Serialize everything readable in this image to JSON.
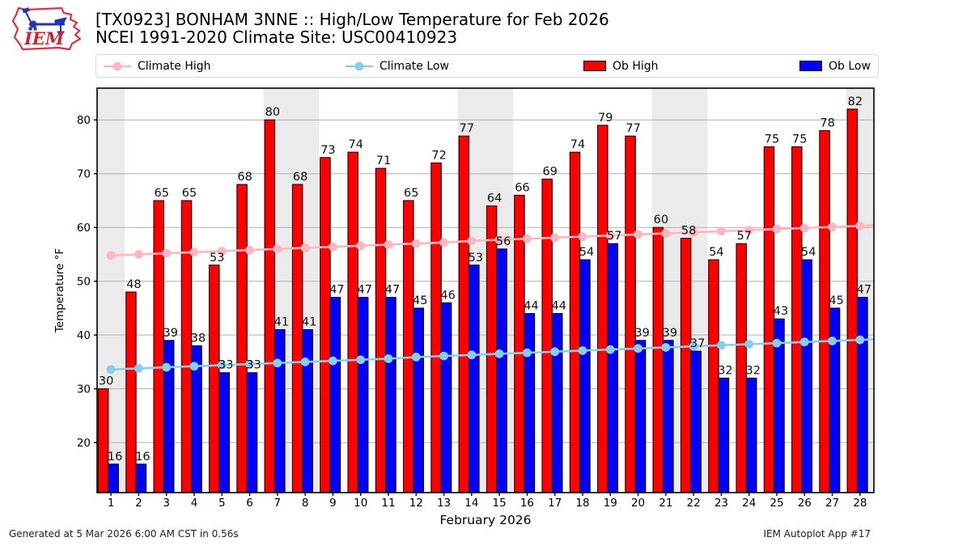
{
  "logo": {
    "text": "IEM"
  },
  "legend": {
    "items": [
      {
        "label": "Climate High",
        "swatch": "line",
        "color": "#ffb6c1"
      },
      {
        "label": "Climate Low",
        "swatch": "line",
        "color": "#87ceeb"
      },
      {
        "label": "Ob High",
        "swatch": "patch",
        "color": "#ff0000"
      },
      {
        "label": "Ob Low",
        "swatch": "patch",
        "color": "#0000ff"
      }
    ]
  },
  "footer": {
    "left": "Generated at 5 Mar 2026 6:00 AM CST in 0.56s",
    "right": "IEM Autoplot App #17"
  },
  "chart_data": {
    "type": "bar",
    "title": "[TX0923] BONHAM 3NNE :: High/Low Temperature for Feb 2026",
    "subtitle": "NCEI 1991-2020 Climate Site: USC00410923",
    "xlabel": "February 2026",
    "ylabel": "Temperature °F",
    "x": [
      1,
      2,
      3,
      4,
      5,
      6,
      7,
      8,
      9,
      10,
      11,
      12,
      13,
      14,
      15,
      16,
      17,
      18,
      19,
      20,
      21,
      22,
      23,
      24,
      25,
      26,
      27,
      28
    ],
    "yticks": [
      20,
      30,
      40,
      50,
      60,
      70,
      80
    ],
    "ylim": [
      10.7,
      85.9
    ],
    "grid": "horizontal",
    "legend_position": "top",
    "weekend_shading_day_ranges": [
      [
        1,
        2
      ],
      [
        7,
        9
      ],
      [
        14,
        16
      ],
      [
        21,
        23
      ],
      [
        28,
        29
      ]
    ],
    "colors": {
      "weekend_band": "#ebebeb",
      "gridline": "#b0b0b0",
      "bar_edge": "#000000",
      "label_text": "#111111"
    },
    "series": [
      {
        "name": "Ob High",
        "type": "bar",
        "color": "#ff0000",
        "labeled": true,
        "values": [
          30,
          48,
          65,
          65,
          53,
          68,
          80,
          68,
          73,
          74,
          71,
          65,
          72,
          77,
          64,
          66,
          69,
          74,
          79,
          77,
          60,
          58,
          54,
          57,
          75,
          75,
          78,
          82
        ]
      },
      {
        "name": "Ob Low",
        "type": "bar",
        "color": "#0000ff",
        "labeled": true,
        "values": [
          16,
          16,
          39,
          38,
          33,
          33,
          41,
          41,
          47,
          47,
          47,
          45,
          46,
          53,
          56,
          44,
          44,
          54,
          57,
          39,
          39,
          37,
          32,
          32,
          43,
          54,
          45,
          47
        ]
      },
      {
        "name": "Climate High",
        "type": "line",
        "color": "#ffb6c1",
        "labeled": false,
        "values": [
          54.8,
          55.0,
          55.2,
          55.4,
          55.6,
          55.8,
          56.0,
          56.2,
          56.4,
          56.6,
          56.8,
          57.0,
          57.2,
          57.5,
          57.7,
          57.9,
          58.1,
          58.3,
          58.5,
          58.7,
          58.9,
          59.1,
          59.3,
          59.5,
          59.7,
          59.9,
          60.1,
          60.3
        ]
      },
      {
        "name": "Climate Low",
        "type": "line",
        "color": "#87ceeb",
        "labeled": false,
        "values": [
          33.6,
          33.8,
          34.0,
          34.2,
          34.4,
          34.6,
          34.8,
          35.0,
          35.2,
          35.4,
          35.6,
          35.9,
          36.1,
          36.3,
          36.5,
          36.7,
          36.9,
          37.1,
          37.3,
          37.5,
          37.7,
          37.9,
          38.1,
          38.3,
          38.5,
          38.7,
          38.9,
          39.1
        ]
      }
    ]
  }
}
